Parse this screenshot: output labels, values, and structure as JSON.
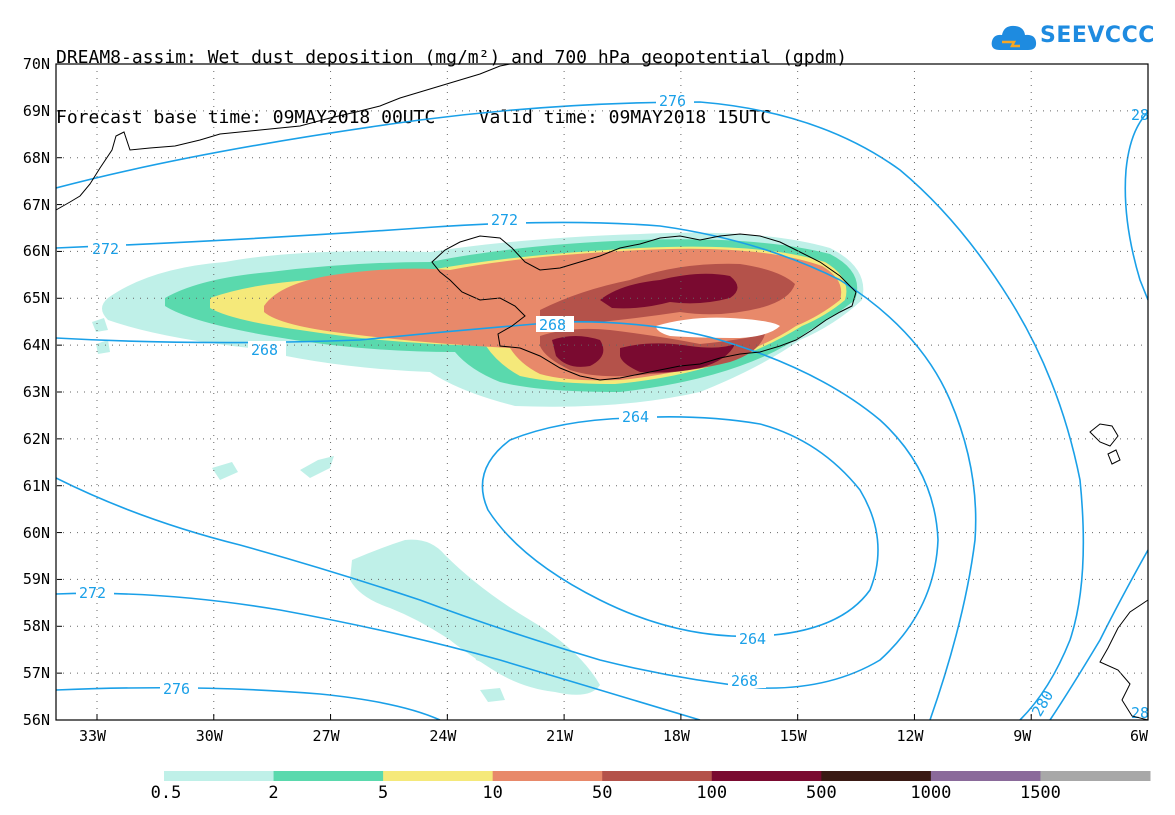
{
  "title": {
    "line1": "DREAM8-assim: Wet dust deposition (mg/m²) and 700 hPa geopotential (gpdm)",
    "line2": "Forecast base time: 09MAY2018 00UTC    Valid time: 09MAY2018 15UTC"
  },
  "logo": {
    "text": "SEEVCCC"
  },
  "axes": {
    "lat_labels": [
      "70N",
      "69N",
      "68N",
      "67N",
      "66N",
      "65N",
      "64N",
      "63N",
      "62N",
      "61N",
      "60N",
      "59N",
      "58N",
      "57N",
      "56N"
    ],
    "lon_labels": [
      "33W",
      "30W",
      "27W",
      "24W",
      "21W",
      "18W",
      "15W",
      "12W",
      "9W",
      "6W"
    ]
  },
  "contour_labels": [
    "276",
    "272",
    "272",
    "268",
    "268",
    "264",
    "264",
    "268",
    "272",
    "276",
    "280",
    "28",
    "28"
  ],
  "legend": {
    "labels": [
      "0.5",
      "2",
      "5",
      "10",
      "50",
      "100",
      "500",
      "1000",
      "1500"
    ],
    "colors": [
      "#bff0e8",
      "#5ad9ad",
      "#f5e97a",
      "#e8896a",
      "#b4524a",
      "#7a0a30",
      "#3a1a14",
      "#8a6a9a",
      "#a8a8a8"
    ]
  },
  "colors": {
    "contour": "#1aa0e8",
    "coast": "#000000"
  }
}
